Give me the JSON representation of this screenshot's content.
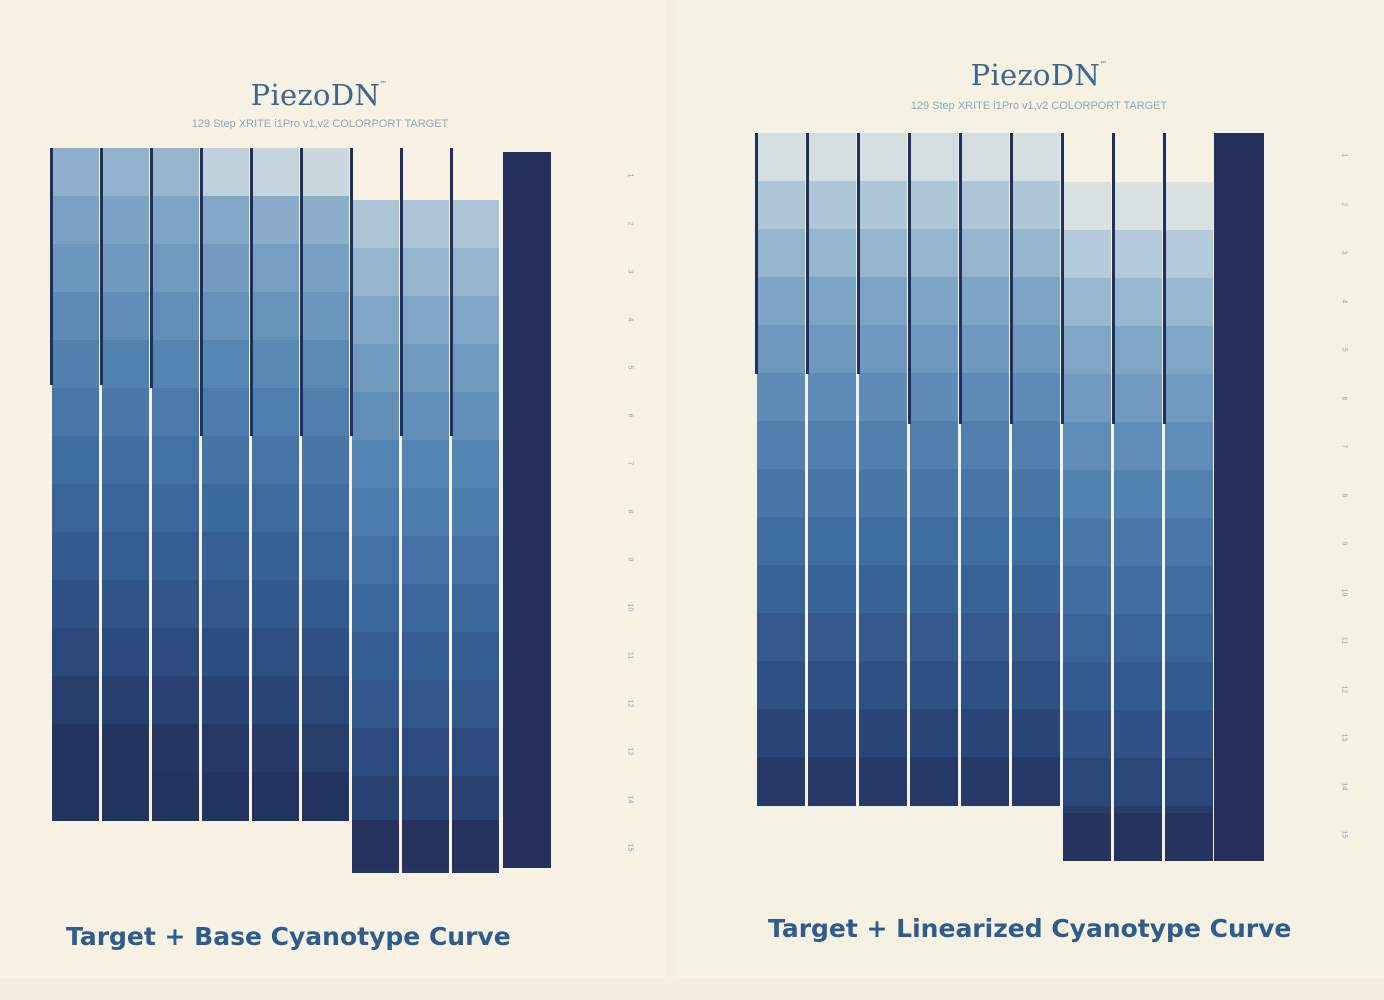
{
  "left": {
    "brand": "PiezoDN",
    "tm": "™",
    "subtitle": "129 Step XRITE i1Pro v1,v2 COLORPORT TARGET",
    "caption": "Target + Base Cyanotype Curve",
    "row_labels": [
      "1",
      "2",
      "3",
      "4",
      "5",
      "6",
      "7",
      "8",
      "9",
      "10",
      "11",
      "12",
      "13",
      "14",
      "15"
    ]
  },
  "right": {
    "brand": "PiezoDN",
    "tm": "™",
    "subtitle": "129 Step XRITE i1Pro v1,v2 COLORPORT TARGET",
    "caption": "Target + Linearized Cyanotype Curve",
    "row_labels": [
      "1",
      "2",
      "3",
      "4",
      "5",
      "6",
      "7",
      "8",
      "9",
      "10",
      "11",
      "12",
      "13",
      "14",
      "15"
    ]
  },
  "colors": {
    "paper": "#f7f2e3",
    "ink_dark": "#1f2f5e",
    "caption_blue": "#2f5c8f",
    "brand_blue": "#3d6790"
  }
}
